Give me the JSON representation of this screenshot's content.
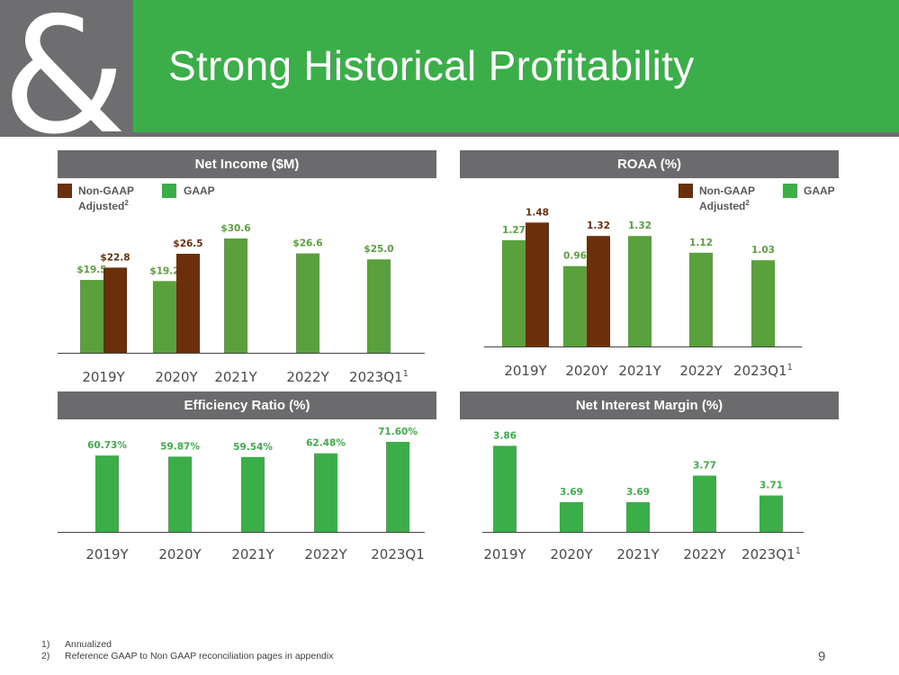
{
  "title": "Strong Historical Profitability",
  "page_number": "9",
  "colors": {
    "gaap": "#5aa03c",
    "gaap_bright": "#3cae49",
    "non_gaap": "#6b2f0b",
    "header_gray": "#6b6b6e"
  },
  "logo_icon": "ampersand-logo-icon",
  "legend": {
    "non_gaap": "Non-GAAP",
    "adjusted": "Adjusted",
    "adjusted_sup": "2",
    "gaap": "GAAP"
  },
  "footnotes": [
    {
      "num": "1)",
      "text": "Annualized"
    },
    {
      "num": "2)",
      "text": "Reference GAAP to Non GAAP reconciliation pages in appendix"
    }
  ],
  "chart_data": [
    {
      "id": "net_income",
      "type": "bar",
      "title": "Net Income ($M)",
      "categories": [
        "2019Y",
        "2020Y",
        "2021Y",
        "2022Y",
        "2023Q1"
      ],
      "category_sup": [
        "",
        "",
        "",
        "",
        "1"
      ],
      "series": [
        {
          "name": "GAAP",
          "values": [
            19.5,
            19.2,
            30.6,
            26.6,
            25.0
          ],
          "labels": [
            "$19.5",
            "$19.2",
            "$30.6",
            "$26.6",
            "$25.0"
          ]
        },
        {
          "name": "Non-GAAP Adjusted",
          "values": [
            22.8,
            26.5,
            null,
            null,
            null
          ],
          "labels": [
            "$22.8",
            "$26.5",
            "",
            "",
            ""
          ]
        }
      ],
      "ylim": [
        0,
        33
      ],
      "legend_position": "top-left"
    },
    {
      "id": "roaa",
      "type": "bar",
      "title": "ROAA (%)",
      "categories": [
        "2019Y",
        "2020Y",
        "2021Y",
        "2022Y",
        "2023Q1"
      ],
      "category_sup": [
        "",
        "",
        "",
        "",
        "1"
      ],
      "series": [
        {
          "name": "GAAP",
          "values": [
            1.27,
            0.96,
            1.32,
            1.12,
            1.03
          ],
          "labels": [
            "1.27",
            "0.96",
            "1.32",
            "1.12",
            "1.03"
          ]
        },
        {
          "name": "Non-GAAP Adjusted",
          "values": [
            1.48,
            1.32,
            null,
            null,
            null
          ],
          "labels": [
            "1.48",
            "1.32",
            "",
            "",
            ""
          ]
        }
      ],
      "ylim": [
        0,
        1.58
      ],
      "legend_position": "top-right"
    },
    {
      "id": "efficiency",
      "type": "bar",
      "title": "Efficiency Ratio (%)",
      "categories": [
        "2019Y",
        "2020Y",
        "2021Y",
        "2022Y",
        "2023Q1"
      ],
      "category_sup": [
        "",
        "",
        "",
        "",
        ""
      ],
      "series": [
        {
          "name": "GAAP",
          "values": [
            60.73,
            59.87,
            59.54,
            62.48,
            71.6
          ],
          "labels": [
            "60.73%",
            "59.87%",
            "59.54%",
            "62.48%",
            "71.60%"
          ]
        }
      ],
      "ylim": [
        0,
        78
      ]
    },
    {
      "id": "nim",
      "type": "bar",
      "title": "Net Interest Margin (%)",
      "categories": [
        "2019Y",
        "2020Y",
        "2021Y",
        "2022Y",
        "2023Q1"
      ],
      "category_sup": [
        "",
        "",
        "",
        "",
        "1"
      ],
      "series": [
        {
          "name": "GAAP",
          "values": [
            3.86,
            3.69,
            3.69,
            3.77,
            3.71
          ],
          "labels": [
            "3.86",
            "3.69",
            "3.69",
            "3.77",
            "3.71"
          ]
        }
      ],
      "ylim": [
        3.6,
        3.88
      ]
    }
  ]
}
